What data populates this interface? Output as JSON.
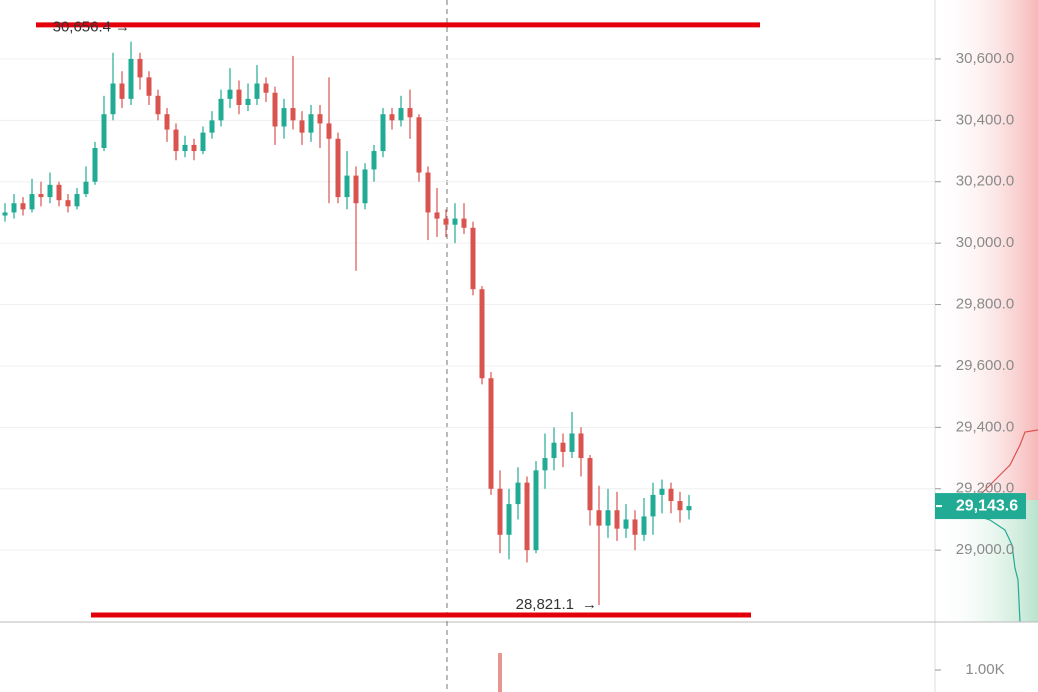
{
  "chart_data": {
    "type": "candlestick",
    "colors": {
      "up": "#22ab94",
      "down": "#d9534f",
      "line": "#e3000b"
    },
    "open": [
      30090,
      30100,
      30130,
      30110,
      30160,
      30150,
      30190,
      30140,
      30120,
      30160,
      30200,
      30310,
      30420,
      30520,
      30470,
      30600,
      30540,
      30480,
      30420,
      30370,
      30300,
      30320,
      30300,
      30360,
      30400,
      30470,
      30500,
      30450,
      30470,
      30520,
      30490,
      30380,
      30440,
      30400,
      30360,
      30420,
      30390,
      30340,
      30150,
      30220,
      30130,
      30240,
      30300,
      30420,
      30400,
      30440,
      30410,
      30230,
      30100,
      30080,
      30060,
      30080,
      30050,
      29850,
      29560,
      29200,
      29050,
      29150,
      29220,
      29000,
      29260,
      29300,
      29350,
      29320,
      29380,
      29300,
      29130,
      29080,
      29130,
      29070,
      29100,
      29050,
      29110,
      29180,
      29200,
      29160,
      29130
    ],
    "high": [
      30130,
      30160,
      30150,
      30210,
      30200,
      30230,
      30200,
      30160,
      30180,
      30250,
      30330,
      30480,
      30620,
      30560,
      30656.4,
      30620,
      30560,
      30500,
      30440,
      30390,
      30350,
      30340,
      30380,
      30430,
      30500,
      30570,
      30530,
      30520,
      30580,
      30540,
      30510,
      30470,
      30610,
      30430,
      30450,
      30450,
      30540,
      30360,
      30300,
      30250,
      30260,
      30320,
      30440,
      30440,
      30480,
      30500,
      30420,
      30250,
      30180,
      30110,
      30130,
      30130,
      30070,
      29860,
      29580,
      29260,
      29200,
      29270,
      29240,
      29290,
      29380,
      29400,
      29380,
      29450,
      29400,
      29310,
      29210,
      29200,
      29190,
      29150,
      29130,
      29170,
      29220,
      29230,
      29220,
      29190,
      29180
    ],
    "low": [
      30070,
      30080,
      30090,
      30100,
      30120,
      30130,
      30120,
      30100,
      30110,
      30150,
      30190,
      30300,
      30400,
      30440,
      30450,
      30500,
      30450,
      30400,
      30330,
      30270,
      30280,
      30270,
      30290,
      30340,
      30380,
      30440,
      30420,
      30430,
      30450,
      30460,
      30320,
      30340,
      30370,
      30320,
      30330,
      30310,
      30130,
      30130,
      30110,
      29910,
      30110,
      30200,
      30280,
      30370,
      30380,
      30340,
      30200,
      30010,
      30020,
      30020,
      30000,
      30030,
      29830,
      29540,
      29180,
      28990,
      28970,
      29100,
      28960,
      28990,
      29200,
      29260,
      29270,
      29300,
      29240,
      29080,
      28821.1,
      29040,
      29030,
      29040,
      29000,
      29030,
      29050,
      29120,
      29120,
      29090,
      29100
    ],
    "close": [
      30100,
      30130,
      30110,
      30160,
      30150,
      30190,
      30140,
      30120,
      30160,
      30200,
      30310,
      30420,
      30520,
      30470,
      30600,
      30540,
      30480,
      30420,
      30370,
      30300,
      30320,
      30300,
      30360,
      30400,
      30470,
      30500,
      30450,
      30470,
      30520,
      30490,
      30380,
      30440,
      30400,
      30360,
      30420,
      30390,
      30340,
      30150,
      30220,
      30130,
      30240,
      30300,
      30420,
      30400,
      30440,
      30410,
      30230,
      30100,
      30080,
      30060,
      30080,
      30050,
      29850,
      29560,
      29200,
      29050,
      29150,
      29220,
      29000,
      29260,
      29300,
      29350,
      29320,
      29380,
      29300,
      29130,
      29080,
      29130,
      29070,
      29100,
      29050,
      29110,
      29180,
      29200,
      29160,
      29130,
      29143.6
    ],
    "ylim": [
      28766,
      30792
    ],
    "yticks": [
      {
        "value": 29000,
        "label": "29,000.0"
      },
      {
        "value": 29200,
        "label": "29,200.0"
      },
      {
        "value": 29400,
        "label": "29,400.0"
      },
      {
        "value": 29600,
        "label": "29,600.0"
      },
      {
        "value": 29800,
        "label": "29,800.0"
      },
      {
        "value": 30000,
        "label": "30,000.0"
      },
      {
        "value": 30200,
        "label": "30,200.0"
      },
      {
        "value": 30400,
        "label": "30,400.0"
      },
      {
        "value": 30600,
        "label": "30,600.0"
      }
    ],
    "grid": true,
    "high_marker": {
      "value": 30656.4,
      "label": "30,656.4"
    },
    "low_marker": {
      "value": 28821.1,
      "label": "28,821.1"
    },
    "last_price": {
      "value": 29143.6,
      "label": "29,143.6"
    },
    "drawn_lines": [
      30711,
      28789
    ],
    "volume_ticks": [
      {
        "value": 1000,
        "label": "1.00K"
      }
    ]
  }
}
